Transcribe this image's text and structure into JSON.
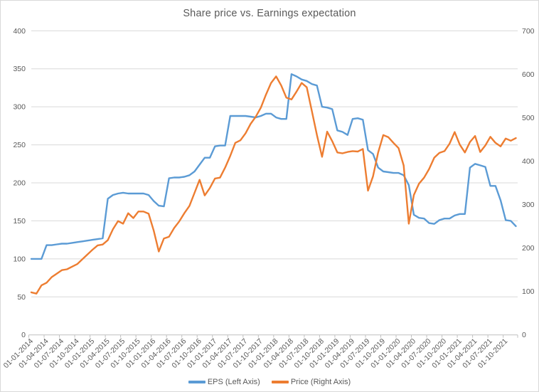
{
  "chart_data": {
    "type": "line",
    "title": "Share price vs. Earnings expectation",
    "grid": "horizontal",
    "legend_position": "bottom",
    "points_per_label": 3,
    "x_tick_labels": [
      "01-01-2014",
      "01-04-2014",
      "01-07-2014",
      "01-10-2014",
      "01-01-2015",
      "01-04-2015",
      "01-07-2015",
      "01-10-2015",
      "01-01-2016",
      "01-04-2016",
      "01-07-2016",
      "01-10-2016",
      "01-01-2017",
      "01-04-2017",
      "01-07-2017",
      "01-10-2017",
      "01-01-2018",
      "01-04-2018",
      "01-07-2018",
      "01-10-2018",
      "01-01-2019",
      "01-04-2019",
      "01-07-2019",
      "01-10-2019",
      "01-01-2020",
      "01-04-2020",
      "01-07-2020",
      "01-10-2020",
      "01-01-2021",
      "01-04-2021",
      "01-07-2021",
      "01-10-2021"
    ],
    "left_axis": {
      "min": 0,
      "max": 400,
      "ticks": [
        0,
        50,
        100,
        150,
        200,
        250,
        300,
        350,
        400
      ]
    },
    "right_axis": {
      "min": 0,
      "max": 700,
      "ticks": [
        0,
        100,
        200,
        300,
        400,
        500,
        600,
        700
      ]
    },
    "series": [
      {
        "name": "EPS (Left Axis)",
        "axis": "left",
        "color": "#5B9BD5",
        "values": [
          100,
          100,
          100,
          118,
          118,
          119,
          120,
          120,
          121,
          122,
          123,
          124,
          125,
          126,
          127,
          179,
          184,
          186,
          187,
          186,
          186,
          186,
          186,
          184,
          176,
          170,
          169,
          206,
          207,
          207,
          208,
          210,
          215,
          224,
          233,
          233,
          248,
          249,
          249,
          288,
          288,
          288,
          288,
          287,
          286,
          288,
          291,
          291,
          286,
          284,
          284,
          343,
          340,
          336,
          334,
          330,
          328,
          300,
          299,
          297,
          269,
          267,
          263,
          284,
          285,
          283,
          243,
          238,
          220,
          215,
          214,
          213,
          213,
          210,
          197,
          158,
          154,
          153,
          147,
          146,
          151,
          153,
          153,
          157,
          159,
          159,
          220,
          225,
          223,
          221,
          196,
          196,
          177,
          151,
          150,
          143
        ]
      },
      {
        "name": "Price (Right Axis)",
        "axis": "right",
        "color": "#ED7D31",
        "values": [
          98,
          95,
          114,
          120,
          133,
          141,
          149,
          151,
          157,
          163,
          174,
          185,
          196,
          206,
          208,
          218,
          243,
          262,
          256,
          280,
          269,
          284,
          284,
          279,
          240,
          192,
          222,
          226,
          246,
          261,
          280,
          297,
          327,
          357,
          321,
          338,
          360,
          362,
          385,
          412,
          442,
          448,
          464,
          486,
          502,
          523,
          553,
          580,
          595,
          574,
          546,
          542,
          560,
          580,
          570,
          515,
          460,
          410,
          468,
          446,
          420,
          418,
          421,
          423,
          422,
          428,
          332,
          365,
          420,
          460,
          455,
          442,
          430,
          390,
          256,
          322,
          348,
          362,
          382,
          408,
          419,
          423,
          440,
          467,
          438,
          420,
          444,
          458,
          421,
          436,
          456,
          442,
          434,
          452,
          447,
          453
        ]
      }
    ],
    "colors": {
      "gridline": "#D9D9D9",
      "axis_line": "#BFBFBF",
      "tick_mark": "#BFBFBF",
      "axis_text": "#595959",
      "title_text": "#595959",
      "background": "#FFFFFF"
    }
  }
}
